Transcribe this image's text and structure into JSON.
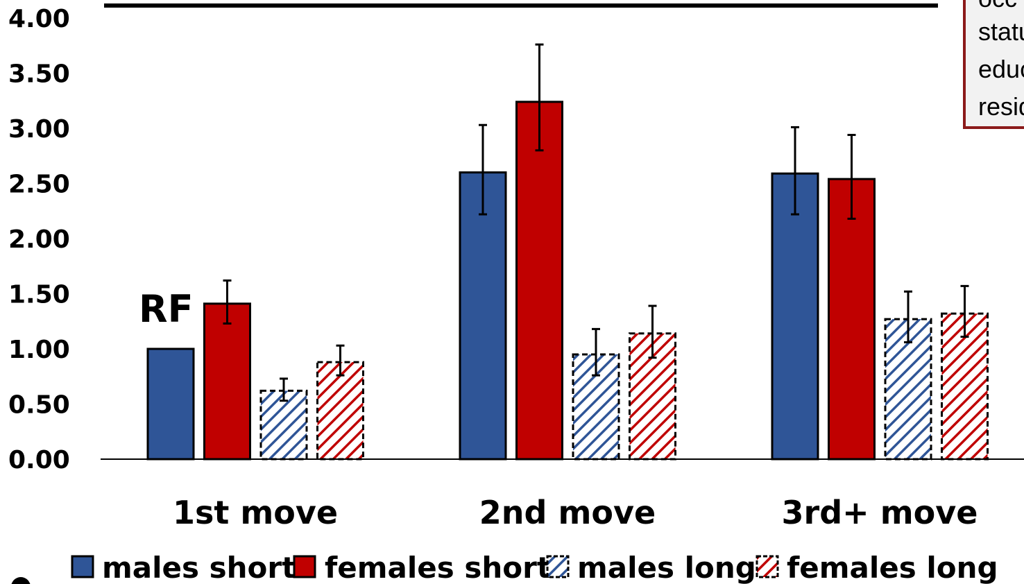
{
  "chart_data": {
    "type": "bar",
    "title": "",
    "xlabel": "",
    "ylabel": "",
    "ylim": [
      0,
      4
    ],
    "yticks": [
      "0.00",
      "0.50",
      "1.00",
      "1.50",
      "2.00",
      "2.50",
      "3.00",
      "3.50",
      "4.00"
    ],
    "categories": [
      "1st move",
      "2nd move",
      "3rd+ move"
    ],
    "series": [
      {
        "name": "males short",
        "values": [
          1.0,
          2.6,
          2.59
        ],
        "err_low": [
          1.0,
          2.22,
          2.22
        ],
        "err_high": [
          1.0,
          3.03,
          3.01
        ],
        "color": "#2F5597",
        "pattern": "solid"
      },
      {
        "name": "females short",
        "values": [
          1.41,
          3.24,
          2.54
        ],
        "err_low": [
          1.23,
          2.8,
          2.18
        ],
        "err_high": [
          1.62,
          3.76,
          2.94
        ],
        "color": "#C00000",
        "pattern": "solid"
      },
      {
        "name": "males long",
        "values": [
          0.62,
          0.95,
          1.27
        ],
        "err_low": [
          0.53,
          0.76,
          1.06
        ],
        "err_high": [
          0.73,
          1.18,
          1.52
        ],
        "color": "#2F5597",
        "pattern": "hatch"
      },
      {
        "name": "females long",
        "values": [
          0.88,
          1.14,
          1.32
        ],
        "err_low": [
          0.76,
          0.92,
          1.11
        ],
        "err_high": [
          1.03,
          1.39,
          1.57
        ],
        "color": "#C00000",
        "pattern": "hatch"
      }
    ],
    "annotations": [
      "RF"
    ],
    "legend_position": "bottom",
    "grid": false
  },
  "note_box": {
    "lines": [
      "occ",
      "statu",
      "educ",
      "resid"
    ],
    "border_color": "#8B1A1A"
  },
  "colors": {
    "blue": "#2F5597",
    "red": "#C00000"
  }
}
